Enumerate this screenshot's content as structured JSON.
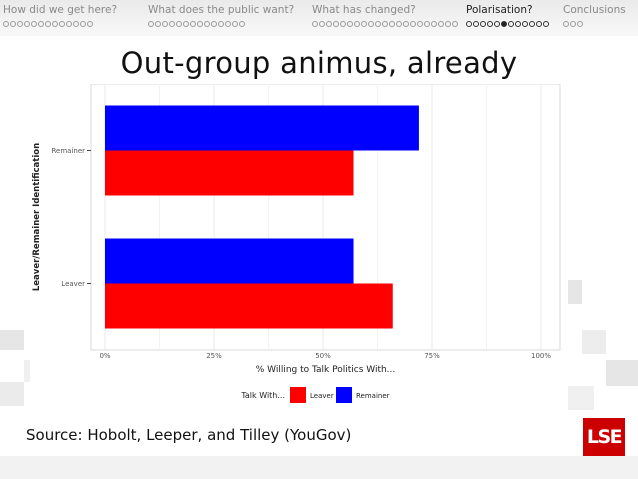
{
  "nav": {
    "sections": [
      {
        "label": "How did we get here?",
        "dots": 13,
        "filled": -1,
        "active": false
      },
      {
        "label": "What does the public want?",
        "dots": 14,
        "filled": -1,
        "active": false
      },
      {
        "label": "What has changed?",
        "dots": 21,
        "filled": -1,
        "active": false
      },
      {
        "label": "Polarisation?",
        "dots": 12,
        "filled": 5,
        "active": true
      },
      {
        "label": "Conclusions",
        "dots": 3,
        "filled": -1,
        "active": false
      }
    ]
  },
  "slide": {
    "title": "Out-group animus, already",
    "source": "Source: Hobolt, Leeper, and Tilley (YouGov)",
    "logo": "LSE"
  },
  "colors": {
    "leaver": "#ff0000",
    "remainer": "#0000ff",
    "grid": "#e8e8e8",
    "axis_text": "#555555"
  },
  "chart_data": {
    "type": "bar",
    "orientation": "horizontal",
    "categories": [
      "Remainer",
      "Leaver"
    ],
    "series": [
      {
        "name": "Leaver",
        "values": [
          57,
          66
        ]
      },
      {
        "name": "Remainer",
        "values": [
          72,
          57
        ]
      }
    ],
    "xlabel": "% Willing to Talk Politics With...",
    "ylabel": "Leaver/Remainer Identification",
    "xlim": [
      0,
      100
    ],
    "xticks": [
      "0%",
      "25%",
      "50%",
      "75%",
      "100%"
    ],
    "legend_title": "Talk With...",
    "legend_position": "bottom",
    "grid": true
  }
}
